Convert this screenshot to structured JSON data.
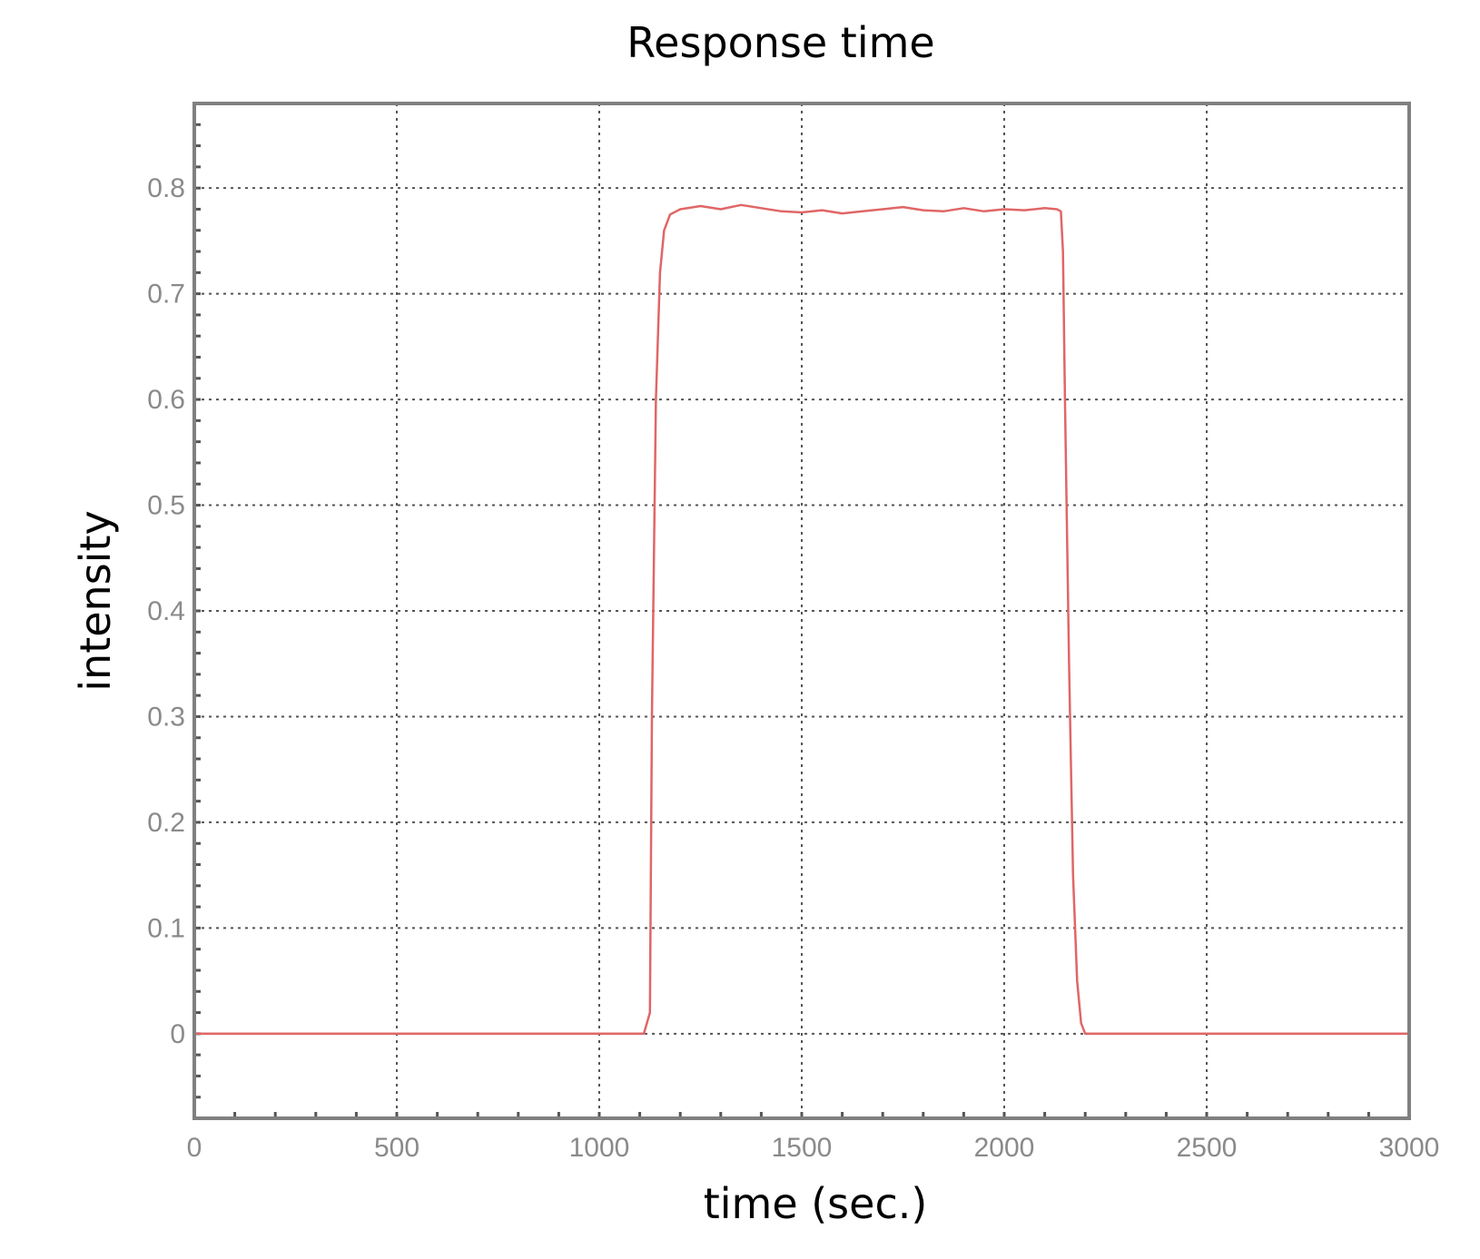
{
  "chart_data": {
    "type": "line",
    "title": "Response time",
    "xlabel": "time (sec.)",
    "ylabel": "intensity",
    "xlim": [
      0,
      3000
    ],
    "ylim": [
      -0.08,
      0.88
    ],
    "xticks": [
      0,
      500,
      1000,
      1500,
      2000,
      2500,
      3000
    ],
    "xtick_labels": [
      "0",
      "500",
      "1000",
      "1500",
      "2000",
      "2500",
      "3000"
    ],
    "yticks": [
      0,
      0.1,
      0.2,
      0.3,
      0.4,
      0.5,
      0.6,
      0.7,
      0.8
    ],
    "ytick_labels": [
      "0",
      "0.1",
      "0.2",
      "0.3",
      "0.4",
      "0.5",
      "0.6",
      "0.7",
      "0.8"
    ],
    "grid": true,
    "series": [
      {
        "color": "#e06666",
        "x": [
          0,
          500,
          1000,
          1110,
          1125,
          1130,
          1140,
          1150,
          1160,
          1175,
          1200,
          1250,
          1300,
          1350,
          1400,
          1450,
          1500,
          1550,
          1600,
          1650,
          1700,
          1750,
          1800,
          1850,
          1900,
          1950,
          2000,
          2050,
          2100,
          2130,
          2140,
          2145,
          2150,
          2160,
          2170,
          2180,
          2190,
          2200,
          2250,
          2500,
          3000
        ],
        "y": [
          0,
          0,
          0,
          0,
          0.02,
          0.3,
          0.6,
          0.72,
          0.76,
          0.775,
          0.78,
          0.783,
          0.78,
          0.784,
          0.781,
          0.778,
          0.777,
          0.779,
          0.776,
          0.778,
          0.78,
          0.782,
          0.779,
          0.778,
          0.781,
          0.778,
          0.78,
          0.779,
          0.781,
          0.78,
          0.778,
          0.74,
          0.6,
          0.35,
          0.15,
          0.05,
          0.01,
          0,
          0,
          0,
          0
        ]
      }
    ]
  }
}
